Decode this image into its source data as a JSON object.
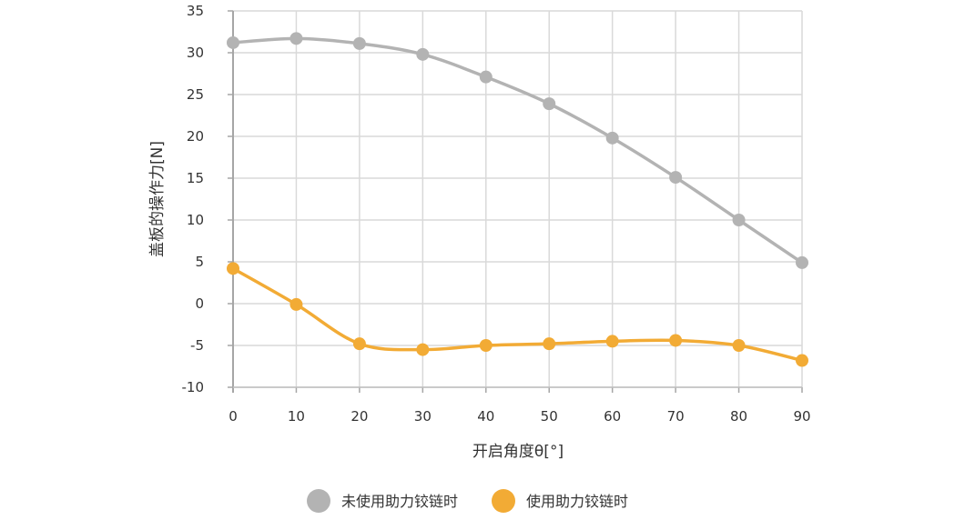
{
  "chart_data": {
    "type": "line",
    "title": "",
    "xlabel": "开启角度θ[°]",
    "ylabel": "盖板的操作力[N]",
    "x": [
      0,
      10,
      20,
      30,
      40,
      50,
      60,
      70,
      80,
      90
    ],
    "xlim": [
      0,
      90
    ],
    "ylim": [
      -10,
      35
    ],
    "xticks": [
      "0",
      "10",
      "20",
      "30",
      "40",
      "50",
      "60",
      "70",
      "80",
      "90"
    ],
    "yticks": [
      "35",
      "30",
      "25",
      "20",
      "15",
      "10",
      "5",
      "0",
      "-5",
      "-10"
    ],
    "grid": true,
    "legend_position": "bottom",
    "series": [
      {
        "name": "未使用助力铰链时",
        "color": "#b3b3b3",
        "values": [
          31.2,
          31.7,
          31.1,
          29.8,
          27.1,
          23.9,
          19.8,
          15.1,
          10.0,
          4.9
        ]
      },
      {
        "name": "使用助力铰链时",
        "color": "#f2ab35",
        "values": [
          4.2,
          -0.1,
          -4.8,
          -5.5,
          -5.0,
          -4.8,
          -4.5,
          -4.4,
          -5.0,
          -6.8
        ]
      }
    ]
  }
}
